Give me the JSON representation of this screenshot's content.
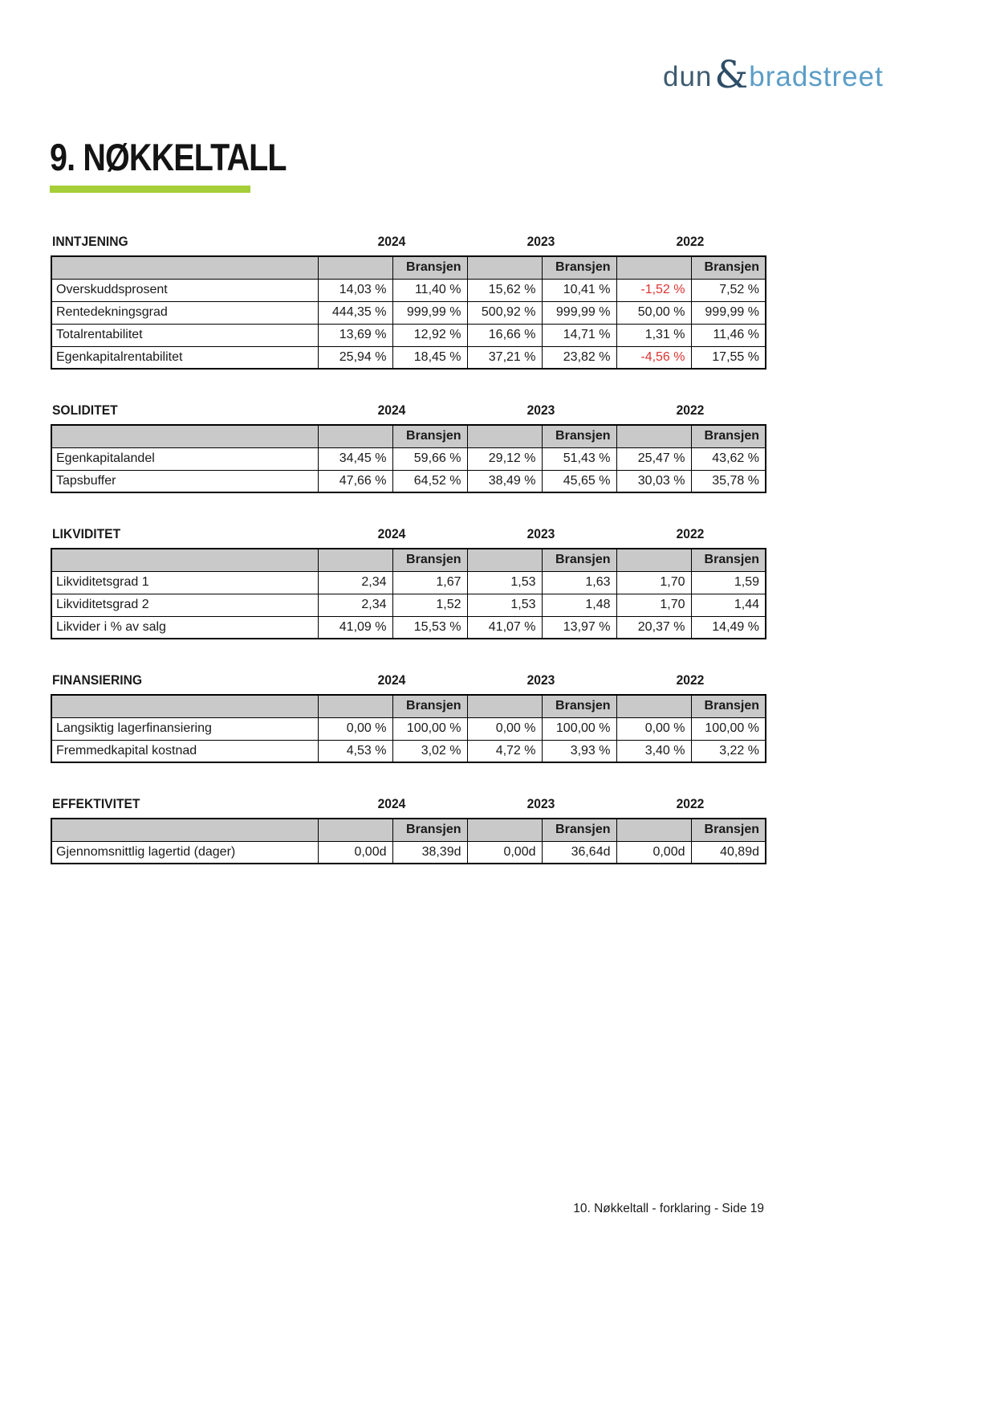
{
  "logo": {
    "dun": "dun",
    "amp": "&",
    "bradstreet": "bradstreet"
  },
  "page_title": "9. NØKKELTALL",
  "years": [
    "2024",
    "2023",
    "2022"
  ],
  "bransjen_label": "Bransjen",
  "colors": {
    "accent_green": "#a6ce38",
    "header_gray": "#c9c9c9",
    "negative_red": "#dd3330",
    "logo_dark_blue": "#3e5b70",
    "logo_light_blue": "#5b9dc7"
  },
  "sections": [
    {
      "title": "INNTJENING",
      "rows": [
        {
          "label": "Overskuddsprosent",
          "values": [
            "14,03 %",
            "11,40 %",
            "15,62 %",
            "10,41 %",
            "-1,52 %",
            "7,52 %"
          ]
        },
        {
          "label": "Rentedekningsgrad",
          "values": [
            "444,35 %",
            "999,99 %",
            "500,92 %",
            "999,99 %",
            "50,00 %",
            "999,99 %"
          ]
        },
        {
          "label": "Totalrentabilitet",
          "values": [
            "13,69 %",
            "12,92 %",
            "16,66 %",
            "14,71 %",
            "1,31 %",
            "11,46 %"
          ]
        },
        {
          "label": "Egenkapitalrentabilitet",
          "values": [
            "25,94 %",
            "18,45 %",
            "37,21 %",
            "23,82 %",
            "-4,56 %",
            "17,55 %"
          ]
        }
      ]
    },
    {
      "title": "SOLIDITET",
      "rows": [
        {
          "label": "Egenkapitalandel",
          "values": [
            "34,45 %",
            "59,66 %",
            "29,12 %",
            "51,43 %",
            "25,47 %",
            "43,62 %"
          ]
        },
        {
          "label": "Tapsbuffer",
          "values": [
            "47,66 %",
            "64,52 %",
            "38,49 %",
            "45,65 %",
            "30,03 %",
            "35,78 %"
          ]
        }
      ]
    },
    {
      "title": "LIKVIDITET",
      "rows": [
        {
          "label": "Likviditetsgrad 1",
          "values": [
            "2,34",
            "1,67",
            "1,53",
            "1,63",
            "1,70",
            "1,59"
          ]
        },
        {
          "label": "Likviditetsgrad 2",
          "values": [
            "2,34",
            "1,52",
            "1,53",
            "1,48",
            "1,70",
            "1,44"
          ]
        },
        {
          "label": "Likvider i % av salg",
          "values": [
            "41,09 %",
            "15,53 %",
            "41,07 %",
            "13,97 %",
            "20,37 %",
            "14,49 %"
          ]
        }
      ]
    },
    {
      "title": "FINANSIERING",
      "rows": [
        {
          "label": "Langsiktig lagerfinansiering",
          "values": [
            "0,00 %",
            "100,00 %",
            "0,00 %",
            "100,00 %",
            "0,00 %",
            "100,00 %"
          ]
        },
        {
          "label": "Fremmedkapital kostnad",
          "values": [
            "4,53 %",
            "3,02 %",
            "4,72 %",
            "3,93 %",
            "3,40 %",
            "3,22 %"
          ]
        }
      ]
    },
    {
      "title": "EFFEKTIVITET",
      "rows": [
        {
          "label": "Gjennomsnittlig lagertid (dager)",
          "values": [
            "0,00d",
            "38,39d",
            "0,00d",
            "36,64d",
            "0,00d",
            "40,89d"
          ]
        }
      ]
    }
  ],
  "footer": "10. Nøkkeltall - forklaring - Side 19"
}
